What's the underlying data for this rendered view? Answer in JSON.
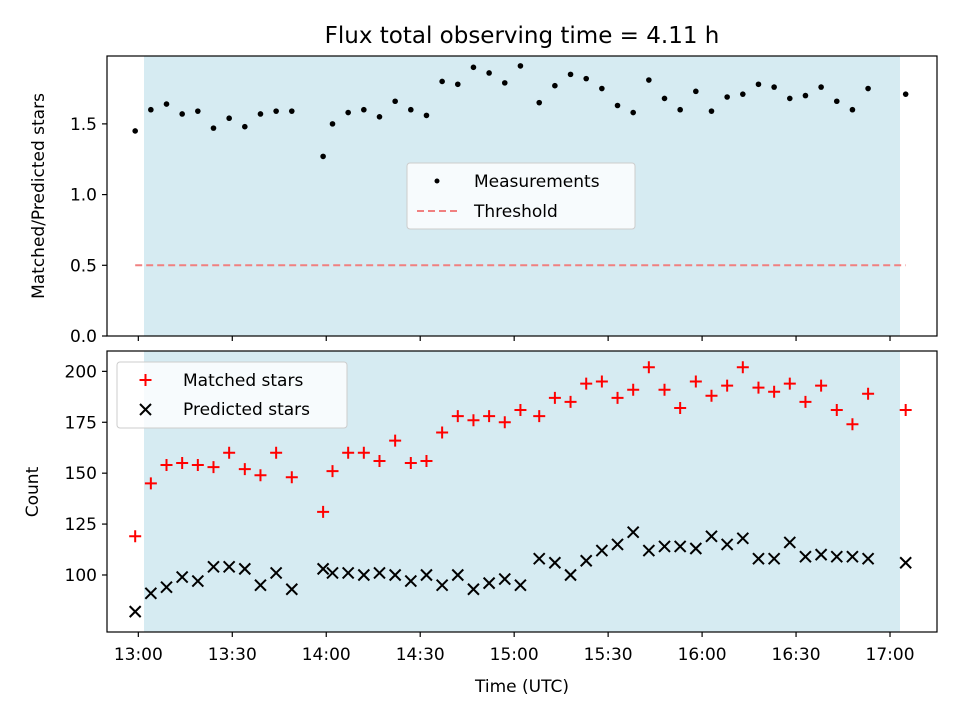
{
  "chart_data": [
    {
      "type": "scatter",
      "title": "Flux total observing time = 4.11 h",
      "xlabel": "",
      "ylabel": "Matched/Predicted stars",
      "ylim": [
        0,
        1.98
      ],
      "yticks": [
        0,
        0.5,
        1.0,
        1.5
      ],
      "ytick_labels": [
        "0.0",
        "0.5",
        "1.0",
        "1.5"
      ],
      "xlim_minutes": [
        770,
        1035
      ],
      "observing_window_minutes": [
        779,
        1025
      ],
      "observing_window_color": "#add8e6",
      "threshold": 0.5,
      "grid": false,
      "legend_position": "center",
      "series": [
        {
          "name": "Measurements",
          "marker": "dot",
          "color": "#000000",
          "x_minutes": [
            779,
            784,
            789,
            794,
            799,
            804,
            809,
            814,
            819,
            824,
            829,
            839,
            842,
            847,
            852,
            857,
            862,
            867,
            872,
            877,
            882,
            887,
            892,
            897,
            902,
            908,
            913,
            918,
            923,
            928,
            933,
            938,
            943,
            948,
            953,
            958,
            963,
            968,
            973,
            978,
            983,
            988,
            993,
            998,
            1003,
            1008,
            1013,
            1025
          ],
          "values": [
            1.45,
            1.6,
            1.64,
            1.57,
            1.59,
            1.47,
            1.54,
            1.48,
            1.57,
            1.59,
            1.59,
            1.27,
            1.5,
            1.58,
            1.6,
            1.55,
            1.66,
            1.6,
            1.56,
            1.8,
            1.78,
            1.9,
            1.86,
            1.79,
            1.91,
            1.65,
            1.77,
            1.85,
            1.82,
            1.75,
            1.63,
            1.58,
            1.81,
            1.68,
            1.6,
            1.73,
            1.59,
            1.69,
            1.71,
            1.78,
            1.76,
            1.68,
            1.7,
            1.76,
            1.66,
            1.6,
            1.75,
            1.71
          ]
        },
        {
          "name": "Threshold",
          "style": "dashed",
          "color": "#f08080",
          "values": [
            0.5,
            0.5
          ]
        }
      ]
    },
    {
      "type": "scatter",
      "title": "",
      "xlabel": "Time (UTC)",
      "ylabel": "Count",
      "ylim": [
        72,
        210
      ],
      "yticks": [
        100,
        125,
        150,
        175,
        200
      ],
      "ytick_labels": [
        "100",
        "125",
        "150",
        "175",
        "200"
      ],
      "x_tick_labels": [
        "13:00",
        "13:30",
        "14:00",
        "14:30",
        "15:00",
        "15:30",
        "16:00",
        "16:30",
        "17:00"
      ],
      "x_tick_minutes": [
        780,
        810,
        840,
        870,
        900,
        930,
        960,
        990,
        1020
      ],
      "xlim_minutes": [
        770,
        1035
      ],
      "observing_window_minutes": [
        779,
        1025
      ],
      "grid": false,
      "legend_position": "top-left",
      "series": [
        {
          "name": "Matched stars",
          "marker": "plus",
          "color": "#ff0000",
          "x_minutes": [
            779,
            784,
            789,
            794,
            799,
            804,
            809,
            814,
            819,
            824,
            829,
            839,
            842,
            847,
            852,
            857,
            862,
            867,
            872,
            877,
            882,
            887,
            892,
            897,
            902,
            908,
            913,
            918,
            923,
            928,
            933,
            938,
            943,
            948,
            953,
            958,
            963,
            968,
            973,
            978,
            983,
            988,
            993,
            998,
            1003,
            1008,
            1013,
            1025
          ],
          "values": [
            119,
            145,
            154,
            155,
            154,
            153,
            160,
            152,
            149,
            160,
            148,
            131,
            151,
            160,
            160,
            156,
            166,
            155,
            156,
            170,
            178,
            176,
            178,
            175,
            181,
            178,
            187,
            185,
            194,
            195,
            187,
            191,
            202,
            191,
            182,
            195,
            188,
            193,
            202,
            192,
            190,
            194,
            185,
            193,
            181,
            174,
            189,
            181
          ]
        },
        {
          "name": "Predicted stars",
          "marker": "x",
          "color": "#000000",
          "x_minutes": [
            779,
            784,
            789,
            794,
            799,
            804,
            809,
            814,
            819,
            824,
            829,
            839,
            842,
            847,
            852,
            857,
            862,
            867,
            872,
            877,
            882,
            887,
            892,
            897,
            902,
            908,
            913,
            918,
            923,
            928,
            933,
            938,
            943,
            948,
            953,
            958,
            963,
            968,
            973,
            978,
            983,
            988,
            993,
            998,
            1003,
            1008,
            1013,
            1025
          ],
          "values": [
            82,
            91,
            94,
            99,
            97,
            104,
            104,
            103,
            95,
            101,
            93,
            103,
            101,
            101,
            100,
            101,
            100,
            97,
            100,
            95,
            100,
            93,
            96,
            98,
            95,
            108,
            106,
            100,
            107,
            112,
            115,
            121,
            112,
            114,
            114,
            113,
            119,
            115,
            118,
            108,
            108,
            116,
            109,
            110,
            109,
            109,
            108,
            106
          ]
        }
      ]
    }
  ]
}
